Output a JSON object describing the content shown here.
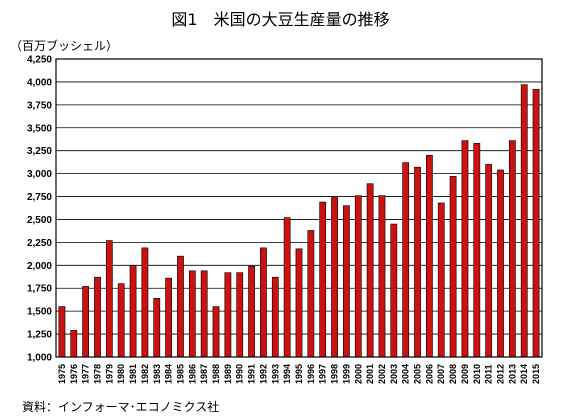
{
  "page": {
    "title": "図1　米国の大豆生産量の推移",
    "unit": "（百万ブッシェル）",
    "source": "資料：インフォーマ･エコノミクス社"
  },
  "colors": {
    "bar_fill": "#cc1111",
    "bar_stroke": "#000000",
    "plot_background": "#ffffff",
    "grid": "#000000"
  },
  "chart_data": {
    "type": "bar",
    "title": "図1　米国の大豆生産量の推移",
    "ylabel": "（百万ブッシェル）",
    "xlabel": "",
    "ylim": [
      1000,
      4250
    ],
    "yticks": [
      1000,
      1250,
      1500,
      1750,
      2000,
      2250,
      2500,
      2750,
      3000,
      3250,
      3500,
      3750,
      4000,
      4250
    ],
    "ytick_labels": [
      "1,000",
      "1,250",
      "1,500",
      "1,750",
      "2,000",
      "2,250",
      "2,500",
      "2,750",
      "3,000",
      "3,250",
      "3,500",
      "3,750",
      "4,000",
      "4,250"
    ],
    "grid": true,
    "legend": "none",
    "categories": [
      "1975",
      "1976",
      "1977",
      "1978",
      "1979",
      "1980",
      "1981",
      "1982",
      "1983",
      "1984",
      "1985",
      "1986",
      "1987",
      "1988",
      "1989",
      "1990",
      "1991",
      "1992",
      "1993",
      "1994",
      "1995",
      "1996",
      "1997",
      "1998",
      "1999",
      "2000",
      "2001",
      "2002",
      "2003",
      "2004",
      "2005",
      "2006",
      "2007",
      "2008",
      "2009",
      "2010",
      "2011",
      "2012",
      "2013",
      "2014",
      "2015"
    ],
    "values": [
      1550,
      1290,
      1770,
      1870,
      2270,
      1800,
      2000,
      2190,
      1640,
      1860,
      2100,
      1940,
      1940,
      1550,
      1920,
      1920,
      1990,
      2190,
      1870,
      2520,
      2180,
      2380,
      2690,
      2740,
      2650,
      2760,
      2890,
      2760,
      2450,
      3120,
      3070,
      3200,
      2680,
      2970,
      3360,
      3330,
      3100,
      3040,
      3360,
      3970,
      3920
    ]
  }
}
